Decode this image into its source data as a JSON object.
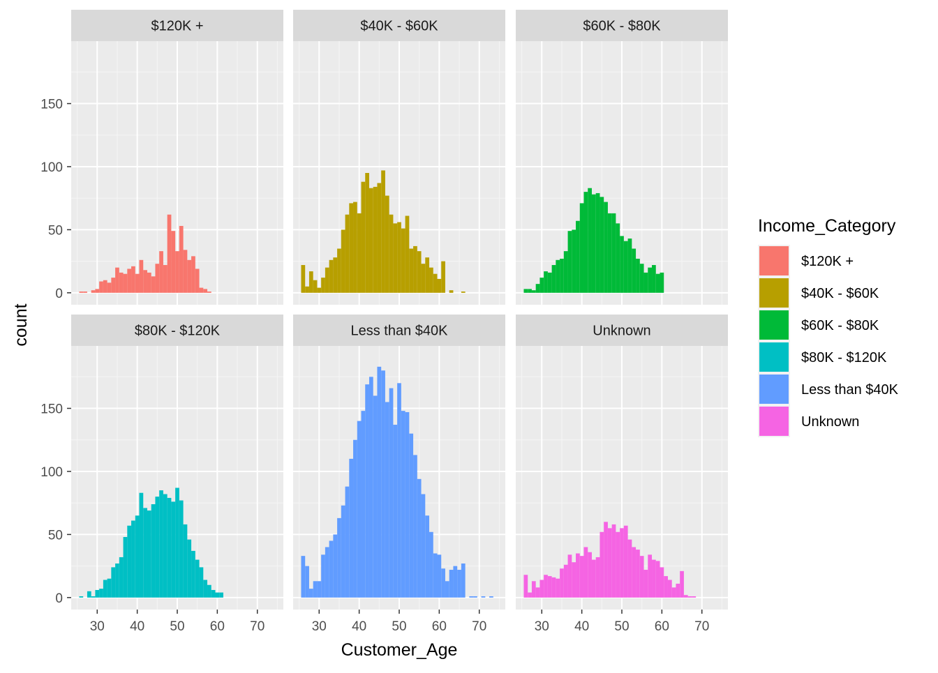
{
  "chart_data": {
    "type": "bar",
    "subtype": "faceted-histogram",
    "xlabel": "Customer_Age",
    "ylabel": "count",
    "xlim": [
      23.5,
      76.5
    ],
    "ylim": [
      -9.5,
      199.5
    ],
    "x_ticks": [
      30,
      40,
      50,
      60,
      70
    ],
    "y_ticks": [
      0,
      50,
      100,
      150
    ],
    "bin_start": 26,
    "bin_width": 1,
    "grid": true,
    "legend": {
      "title": "Income_Category",
      "position": "right",
      "entries": [
        "$120K +",
        "$40K - $60K",
        "$60K - $80K",
        "$80K - $120K",
        "Less than $40K",
        "Unknown"
      ]
    },
    "panels": [
      {
        "name": "$120K +",
        "color": "#F8766D",
        "counts": [
          1,
          1,
          0,
          2,
          3,
          9,
          10,
          8,
          12,
          20,
          16,
          15,
          19,
          21,
          15,
          26,
          18,
          16,
          13,
          23,
          33,
          22,
          62,
          49,
          33,
          53,
          34,
          26,
          29,
          19,
          4,
          3,
          1
        ]
      },
      {
        "name": "$40K - $60K",
        "color": "#B79F00",
        "counts": [
          22,
          5,
          17,
          10,
          4,
          12,
          20,
          26,
          28,
          35,
          50,
          62,
          71,
          72,
          63,
          88,
          95,
          83,
          84,
          87,
          97,
          77,
          62,
          55,
          56,
          51,
          61,
          35,
          37,
          33,
          23,
          28,
          20,
          15,
          11,
          25,
          0,
          2,
          0,
          0,
          1
        ]
      },
      {
        "name": "$60K - $80K",
        "color": "#00BA38",
        "counts": [
          3,
          3,
          2,
          7,
          12,
          17,
          16,
          22,
          26,
          27,
          33,
          49,
          50,
          57,
          71,
          80,
          83,
          78,
          79,
          76,
          72,
          63,
          63,
          55,
          45,
          41,
          43,
          35,
          27,
          23,
          16,
          20,
          22,
          15,
          16
        ]
      },
      {
        "name": "$80K - $120K",
        "color": "#00BFC4",
        "counts": [
          1,
          0,
          5,
          1,
          6,
          7,
          14,
          15,
          24,
          27,
          32,
          48,
          57,
          61,
          65,
          83,
          71,
          69,
          74,
          80,
          85,
          82,
          79,
          76,
          87,
          77,
          58,
          46,
          37,
          30,
          24,
          14,
          10,
          6,
          4,
          4
        ]
      },
      {
        "name": "Less than $40K",
        "color": "#619CFF",
        "counts": [
          33,
          25,
          7,
          13,
          13,
          34,
          40,
          45,
          50,
          63,
          73,
          88,
          110,
          125,
          140,
          148,
          169,
          175,
          160,
          183,
          180,
          155,
          166,
          137,
          170,
          148,
          147,
          130,
          113,
          94,
          82,
          65,
          52,
          35,
          34,
          23,
          13,
          22,
          25,
          22,
          27,
          0,
          1,
          1,
          0,
          1,
          0,
          1
        ]
      },
      {
        "name": "Unknown",
        "color": "#F564E3",
        "counts": [
          18,
          4,
          13,
          8,
          14,
          18,
          17,
          16,
          15,
          23,
          26,
          34,
          28,
          35,
          33,
          40,
          36,
          30,
          32,
          52,
          60,
          55,
          58,
          52,
          55,
          57,
          46,
          40,
          38,
          33,
          22,
          34,
          30,
          29,
          24,
          17,
          14,
          8,
          11,
          21,
          2,
          1,
          1
        ]
      }
    ]
  }
}
